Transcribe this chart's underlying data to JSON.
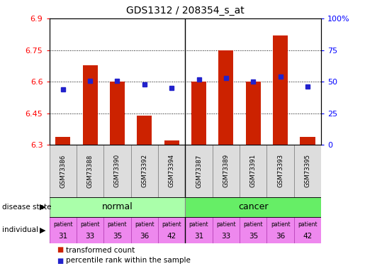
{
  "title": "GDS1312 / 208354_s_at",
  "samples": [
    "GSM73386",
    "GSM73388",
    "GSM73390",
    "GSM73392",
    "GSM73394",
    "GSM73387",
    "GSM73389",
    "GSM73391",
    "GSM73393",
    "GSM73395"
  ],
  "transformed_count": [
    6.34,
    6.68,
    6.6,
    6.44,
    6.32,
    6.6,
    6.75,
    6.6,
    6.82,
    6.34
  ],
  "percentile_rank": [
    44,
    51,
    51,
    48,
    45,
    52,
    53,
    50,
    54,
    46
  ],
  "ylim": [
    6.3,
    6.9
  ],
  "yticks": [
    6.3,
    6.45,
    6.6,
    6.75,
    6.9
  ],
  "ytick_labels": [
    "6.3",
    "6.45",
    "6.6",
    "6.75",
    "6.9"
  ],
  "right_yticks": [
    0,
    25,
    50,
    75,
    100
  ],
  "right_ytick_labels": [
    "0",
    "25",
    "50",
    "75",
    "100%"
  ],
  "bar_color": "#cc2200",
  "dot_color": "#2222cc",
  "normal_color": "#aaffaa",
  "cancer_color": "#66ee66",
  "individual_color": "#ee88ee",
  "patient_nums_normal": [
    31,
    33,
    35,
    36,
    42
  ],
  "patient_nums_cancer": [
    31,
    33,
    35,
    36,
    42
  ],
  "legend_label_red": "transformed count",
  "legend_label_blue": "percentile rank within the sample"
}
